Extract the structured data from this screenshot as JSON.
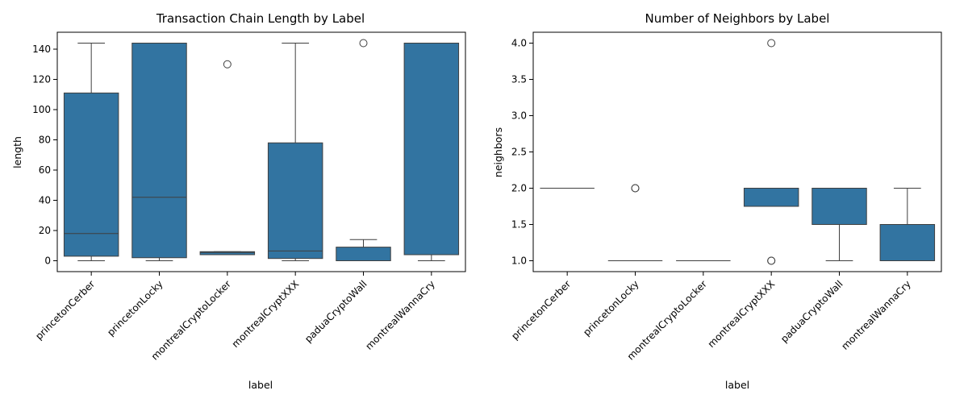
{
  "chart_data": [
    {
      "type": "box",
      "title": "Transaction Chain Length by Label",
      "xlabel": "label",
      "ylabel": "length",
      "ylim": [
        -7.2,
        151.2
      ],
      "yticks": [
        0,
        20,
        40,
        60,
        80,
        100,
        120,
        140
      ],
      "ytick_labels": [
        "0",
        "20",
        "40",
        "60",
        "80",
        "100",
        "120",
        "140"
      ],
      "categories": [
        "princetonCerber",
        "princetonLocky",
        "montrealCryptoLocker",
        "montrealCryptXXX",
        "paduaCryptoWall",
        "montrealWannaCry"
      ],
      "boxes": [
        {
          "whisker_low": 0,
          "q1": 3,
          "median": 18,
          "q3": 111,
          "whisker_high": 144,
          "outliers": []
        },
        {
          "whisker_low": 0,
          "q1": 2,
          "median": 42,
          "q3": 144,
          "whisker_high": 144,
          "outliers": []
        },
        {
          "whisker_low": 4,
          "q1": 4,
          "median": 5.5,
          "q3": 6,
          "whisker_high": 6,
          "outliers": [
            130
          ]
        },
        {
          "whisker_low": 0,
          "q1": 1.5,
          "median": 6.5,
          "q3": 78,
          "whisker_high": 144,
          "outliers": []
        },
        {
          "whisker_low": 0,
          "q1": 0,
          "median": 0,
          "q3": 9,
          "whisker_high": 14,
          "outliers": [
            144
          ]
        },
        {
          "whisker_low": 0,
          "q1": 4,
          "median": 144,
          "q3": 144,
          "whisker_high": 144,
          "outliers": []
        }
      ],
      "color": "#3274a1",
      "grid": false,
      "legend": false
    },
    {
      "type": "box",
      "title": "Number of Neighbors by Label",
      "xlabel": "label",
      "ylabel": "neighbors",
      "ylim": [
        0.85,
        4.15
      ],
      "yticks": [
        1.0,
        1.5,
        2.0,
        2.5,
        3.0,
        3.5,
        4.0
      ],
      "ytick_labels": [
        "1.0",
        "1.5",
        "2.0",
        "2.5",
        "3.0",
        "3.5",
        "4.0"
      ],
      "categories": [
        "princetonCerber",
        "princetonLocky",
        "montrealCryptoLocker",
        "montrealCryptXXX",
        "paduaCryptoWall",
        "montrealWannaCry"
      ],
      "boxes": [
        {
          "whisker_low": 2,
          "q1": 2,
          "median": 2,
          "q3": 2,
          "whisker_high": 2,
          "outliers": []
        },
        {
          "whisker_low": 1,
          "q1": 1,
          "median": 1,
          "q3": 1,
          "whisker_high": 1,
          "outliers": [
            2,
            2
          ]
        },
        {
          "whisker_low": 1,
          "q1": 1,
          "median": 1,
          "q3": 1,
          "whisker_high": 1,
          "outliers": []
        },
        {
          "whisker_low": 1.75,
          "q1": 1.75,
          "median": 2,
          "q3": 2,
          "whisker_high": 2,
          "outliers": [
            4,
            1,
            1
          ]
        },
        {
          "whisker_low": 1,
          "q1": 1.5,
          "median": 2,
          "q3": 2,
          "whisker_high": 2,
          "outliers": []
        },
        {
          "whisker_low": 1,
          "q1": 1,
          "median": 1,
          "q3": 1.5,
          "whisker_high": 2,
          "outliers": []
        }
      ],
      "color": "#3274a1",
      "grid": false,
      "legend": false
    }
  ]
}
